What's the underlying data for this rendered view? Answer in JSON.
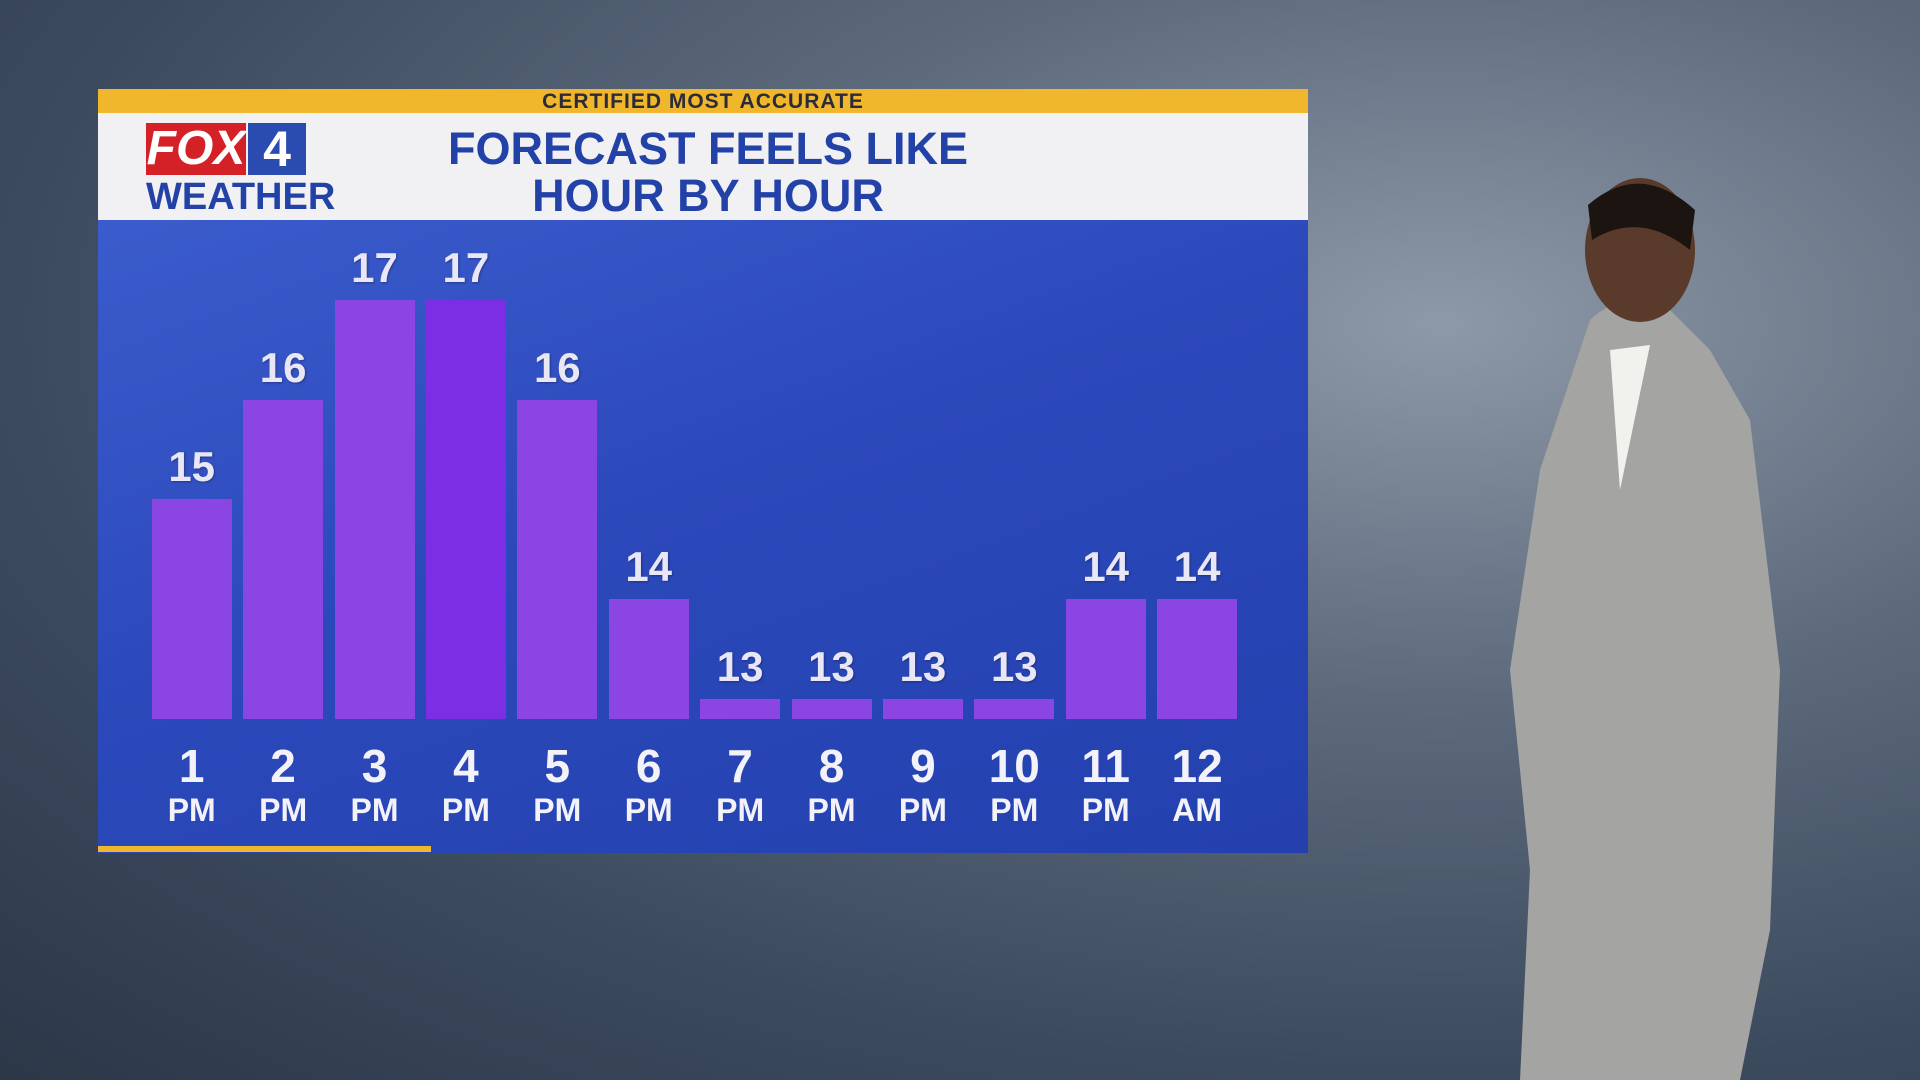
{
  "banner": "CERTIFIED MOST ACCURATE",
  "logo": {
    "brand": "FOX",
    "channel": "4",
    "label": "WEATHER"
  },
  "chart_data": {
    "type": "bar",
    "title": [
      "FORECAST FEELS LIKE",
      "HOUR BY HOUR"
    ],
    "categories": [
      "1 PM",
      "2 PM",
      "3 PM",
      "4 PM",
      "5 PM",
      "6 PM",
      "7 PM",
      "8 PM",
      "9 PM",
      "10 PM",
      "11 PM",
      "12 AM"
    ],
    "values": [
      15,
      16,
      17,
      17,
      16,
      14,
      13,
      13,
      13,
      13,
      14,
      14
    ],
    "colors": [
      "#8a45e2",
      "#8a45e2",
      "#8a45e2",
      "#7b2ee3",
      "#8a45e2",
      "#8a45e2",
      "#8a45e2",
      "#8a45e2",
      "#8a45e2",
      "#8a45e2",
      "#8a45e2",
      "#8a45e2"
    ],
    "ylim": [
      12.8,
      17.6
    ]
  }
}
